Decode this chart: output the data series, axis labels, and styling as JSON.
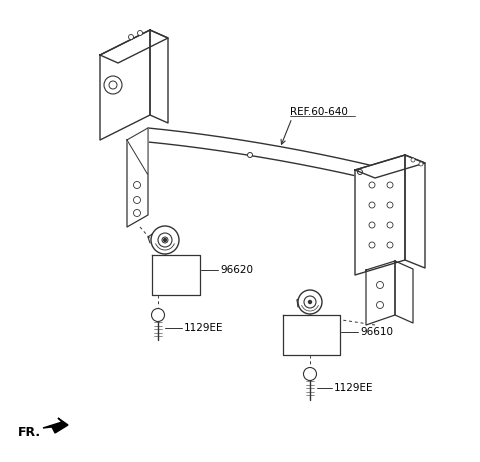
{
  "background_color": "#ffffff",
  "line_color": "#333333",
  "text_color": "#000000",
  "labels": {
    "ref": "REF.60-640",
    "part1": "96620",
    "part2": "96610",
    "bolt1": "1129EE",
    "bolt2": "1129EE",
    "fr": "FR."
  },
  "figsize": [
    4.8,
    4.62
  ],
  "dpi": 100
}
